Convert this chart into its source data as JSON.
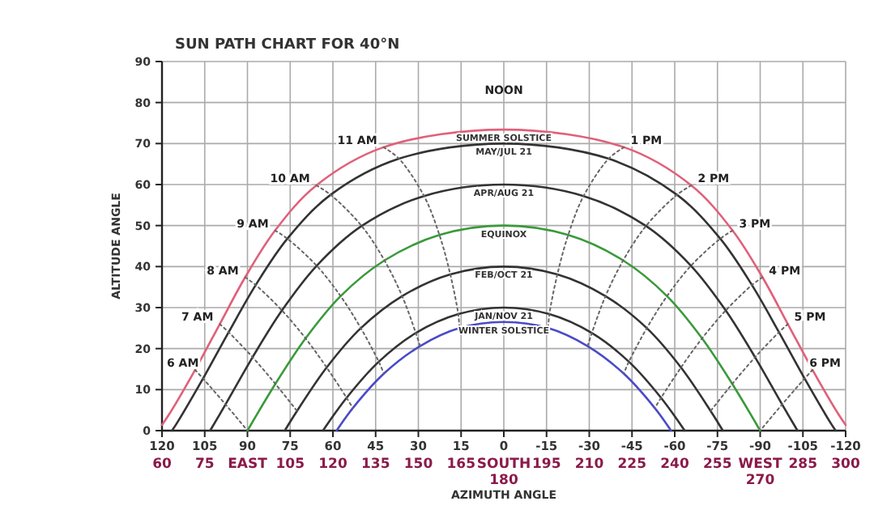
{
  "chart_data": {
    "type": "line",
    "title": "SUN PATH CHART FOR 40°N",
    "xlabel": "AZIMUTH ANGLE",
    "ylabel": "ALTITUDE ANGLE",
    "xlim": [
      120,
      -120
    ],
    "xticks": [
      120,
      105,
      90,
      75,
      60,
      45,
      30,
      15,
      0,
      -15,
      -30,
      -45,
      -60,
      -75,
      -90,
      -105,
      -120
    ],
    "ylim": [
      0,
      90
    ],
    "yticks": [
      0,
      10,
      20,
      30,
      40,
      50,
      60,
      70,
      80,
      90
    ],
    "x2lim": [
      60,
      300
    ],
    "x2ticks": [
      60,
      75,
      {
        "value": 90,
        "label": "EAST"
      },
      105,
      120,
      135,
      150,
      165,
      {
        "value": 180,
        "label": "SOUTH\n180"
      },
      195,
      210,
      225,
      240,
      255,
      {
        "value": 270,
        "label": "WEST\n270"
      },
      285,
      300
    ],
    "grid": true,
    "legend": false,
    "marker": "none",
    "series": [
      {
        "name": "SUMMER SOLSTICE",
        "color": "#e0607a",
        "x": [
          120,
          117.3,
          108.4,
          99.7,
          90.8,
          80.3,
          65.8,
          42.2,
          0,
          -42.2,
          -65.8,
          -80.3,
          -90.8,
          -99.7,
          -108.4,
          -117.3,
          -120
        ],
        "values": [
          1.4,
          4.2,
          14.8,
          26.0,
          37.4,
          48.8,
          59.8,
          69.1,
          73.4,
          69.1,
          59.8,
          48.8,
          37.4,
          26.0,
          14.8,
          4.2,
          1.4
        ]
      },
      {
        "name": "MAY/JUL 21",
        "color": "#333333",
        "x": [
          116.5,
          114.7,
          105.6,
          96.6,
          87.1,
          76.0,
          60.8,
          36.8,
          0,
          -36.8,
          -60.8,
          -76.0,
          -87.1,
          -96.6,
          -105.6,
          -114.7,
          -116.5
        ],
        "values": [
          0,
          1.9,
          12.7,
          24.0,
          35.5,
          46.8,
          57.5,
          66.3,
          70.0,
          66.3,
          57.5,
          46.8,
          35.5,
          24.0,
          12.7,
          1.9,
          0
        ]
      },
      {
        "name": "APR/AUG 21",
        "color": "#333333",
        "x": [
          103.1,
          97.7,
          88.2,
          77.9,
          65.7,
          49.9,
          28.0,
          0,
          -28.0,
          -49.9,
          -65.7,
          -77.9,
          -88.2,
          -97.7,
          -103.1
        ],
        "values": [
          0,
          6.4,
          17.9,
          29.3,
          40.2,
          49.9,
          57.2,
          60.0,
          57.2,
          49.9,
          40.2,
          29.3,
          17.9,
          6.4,
          0
        ]
      },
      {
        "name": "EQUINOX",
        "color": "#3a9a3a",
        "x": [
          90,
          80.2,
          69.6,
          57.3,
          41.9,
          22.6,
          0,
          -22.6,
          -41.9,
          -57.3,
          -69.6,
          -80.2,
          -90
        ],
        "values": [
          0,
          11.4,
          22.5,
          32.8,
          41.5,
          47.7,
          50.0,
          47.7,
          41.5,
          32.8,
          22.5,
          11.4,
          0
        ]
      },
      {
        "name": "FEB/OCT 21",
        "color": "#333333",
        "x": [
          76.9,
          72.6,
          62.2,
          50.2,
          35.7,
          18.8,
          0,
          -18.8,
          -35.7,
          -50.2,
          -62.2,
          -72.6,
          -76.9
        ],
        "values": [
          0,
          4.8,
          15.4,
          25.0,
          32.8,
          38.1,
          40.0,
          38.1,
          32.8,
          25.0,
          15.4,
          4.8,
          0
        ]
      },
      {
        "name": "JAN/NOV 21",
        "color": "#333333",
        "x": [
          63.5,
          55.2,
          43.9,
          30.9,
          16.0,
          0,
          -16.0,
          -30.9,
          -43.9,
          -55.2,
          -63.5
        ],
        "values": [
          0,
          8.0,
          16.8,
          23.8,
          28.4,
          30.0,
          28.4,
          23.8,
          16.8,
          8.0,
          0
        ]
      },
      {
        "name": "WINTER SOLSTICE",
        "color": "#4a4ac8",
        "x": [
          58.7,
          53.0,
          42.1,
          29.4,
          15.6,
          0,
          -15.6,
          -29.4,
          -42.1,
          -53.0,
          -58.7
        ],
        "values": [
          0,
          5.5,
          13.9,
          20.6,
          25.0,
          26.5,
          25.0,
          20.6,
          13.9,
          5.5,
          0
        ]
      },
      {
        "color": "#666666",
        "line_style": "dotted",
        "x": [
          108.4,
          105.6,
          97.7,
          90
        ],
        "values": [
          14.8,
          12.7,
          6.4,
          0
        ]
      },
      {
        "color": "#666666",
        "line_style": "dotted",
        "x": [
          99.7,
          96.6,
          88.2,
          80.2,
          72.6
        ],
        "values": [
          26.0,
          24.0,
          17.9,
          11.4,
          4.8
        ]
      },
      {
        "color": "#666666",
        "line_style": "dotted",
        "x": [
          90.8,
          87.1,
          77.9,
          69.6,
          62.2,
          55.2,
          53.0
        ],
        "values": [
          37.4,
          35.5,
          29.3,
          22.5,
          15.4,
          8.0,
          5.5
        ]
      },
      {
        "color": "#666666",
        "line_style": "dotted",
        "x": [
          80.3,
          76.0,
          65.7,
          57.3,
          50.2,
          43.9,
          42.1
        ],
        "values": [
          48.8,
          46.8,
          40.2,
          32.8,
          25.0,
          16.8,
          13.9
        ]
      },
      {
        "color": "#666666",
        "line_style": "dotted",
        "x": [
          65.8,
          60.8,
          49.9,
          41.9,
          35.7,
          30.9,
          29.4
        ],
        "values": [
          59.8,
          57.5,
          49.9,
          41.5,
          32.8,
          23.8,
          20.6
        ]
      },
      {
        "color": "#666666",
        "line_style": "dotted",
        "x": [
          42.2,
          36.8,
          28.0,
          22.6,
          18.8,
          16.0,
          15.6
        ],
        "values": [
          69.1,
          66.3,
          57.2,
          47.7,
          38.1,
          28.4,
          25.0
        ]
      },
      {
        "color": "#666666",
        "line_style": "dotted",
        "x": [
          -42.2,
          -36.8,
          -28.0,
          -22.6,
          -18.8,
          -16.0,
          -15.6
        ],
        "values": [
          69.1,
          66.3,
          57.2,
          47.7,
          38.1,
          28.4,
          25.0
        ]
      },
      {
        "color": "#666666",
        "line_style": "dotted",
        "x": [
          -65.8,
          -60.8,
          -49.9,
          -41.9,
          -35.7,
          -30.9,
          -29.4
        ],
        "values": [
          59.8,
          57.5,
          49.9,
          41.5,
          32.8,
          23.8,
          20.6
        ]
      },
      {
        "color": "#666666",
        "line_style": "dotted",
        "x": [
          -80.3,
          -76.0,
          -65.7,
          -57.3,
          -50.2,
          -43.9,
          -42.1
        ],
        "values": [
          48.8,
          46.8,
          40.2,
          32.8,
          25.0,
          16.8,
          13.9
        ]
      },
      {
        "color": "#666666",
        "line_style": "dotted",
        "x": [
          -90.8,
          -87.1,
          -77.9,
          -69.6,
          -62.2,
          -55.2,
          -53.0
        ],
        "values": [
          37.4,
          35.5,
          29.3,
          22.5,
          15.4,
          8.0,
          5.5
        ]
      },
      {
        "color": "#666666",
        "line_style": "dotted",
        "x": [
          -99.7,
          -96.6,
          -88.2,
          -80.2,
          -72.6
        ],
        "values": [
          26.0,
          24.0,
          17.9,
          11.4,
          4.8
        ]
      },
      {
        "color": "#666666",
        "line_style": "dotted",
        "x": [
          -108.4,
          -105.6,
          -97.7,
          -90
        ],
        "values": [
          14.8,
          12.7,
          6.4,
          0
        ]
      }
    ],
    "annotations": [
      "NOON",
      {
        "text": "11 AM",
        "x": 42.2,
        "y": 69.1
      },
      {
        "text": "10 AM",
        "x": 65.8,
        "y": 59.8
      },
      {
        "text": "9 AM",
        "x": 80.3,
        "y": 48.8
      },
      {
        "text": "8 AM",
        "x": 90.8,
        "y": 37.4
      },
      {
        "text": "7 AM",
        "x": 99.7,
        "y": 26.0
      },
      {
        "text": "6 AM",
        "x": 108.4,
        "y": 14.8
      },
      {
        "text": "1 PM",
        "x": -42.2,
        "y": 69.1
      },
      {
        "text": "2 PM",
        "x": -65.8,
        "y": 59.8
      },
      {
        "text": "3 PM",
        "x": -80.3,
        "y": 48.8
      },
      {
        "text": "4 PM",
        "x": -90.8,
        "y": 37.4
      },
      {
        "text": "5 PM",
        "x": -99.7,
        "y": 26.0
      },
      {
        "text": "6 PM",
        "x": -108.4,
        "y": 14.8
      }
    ]
  }
}
